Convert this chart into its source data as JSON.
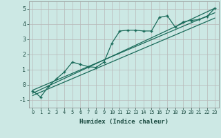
{
  "xlabel": "Humidex (Indice chaleur)",
  "bg_color": "#cce8e4",
  "grid_color": "#b8b8b8",
  "line_color": "#1a6b5a",
  "x_data": [
    0,
    1,
    2,
    3,
    4,
    5,
    6,
    7,
    8,
    9,
    10,
    11,
    12,
    13,
    14,
    15,
    16,
    17,
    18,
    19,
    20,
    21,
    22,
    23
  ],
  "line_marked": [
    -0.4,
    -0.8,
    -0.1,
    0.4,
    0.85,
    1.5,
    1.35,
    1.2,
    1.15,
    1.5,
    2.75,
    3.55,
    3.6,
    3.6,
    3.55,
    3.55,
    4.45,
    4.55,
    3.8,
    4.15,
    4.25,
    4.3,
    4.5,
    5.05
  ],
  "trend1_x": [
    0,
    23
  ],
  "trend1_y": [
    -0.55,
    5.05
  ],
  "trend2_x": [
    0,
    23
  ],
  "trend2_y": [
    -0.35,
    4.75
  ],
  "trend3_x": [
    0,
    23
  ],
  "trend3_y": [
    -0.7,
    4.4
  ],
  "ylim": [
    -1.5,
    5.5
  ],
  "xlim": [
    -0.5,
    23.5
  ],
  "yticks": [
    -1,
    0,
    1,
    2,
    3,
    4,
    5
  ],
  "xticks": [
    0,
    1,
    2,
    3,
    4,
    5,
    6,
    7,
    8,
    9,
    10,
    11,
    12,
    13,
    14,
    15,
    16,
    17,
    18,
    19,
    20,
    21,
    22,
    23
  ]
}
